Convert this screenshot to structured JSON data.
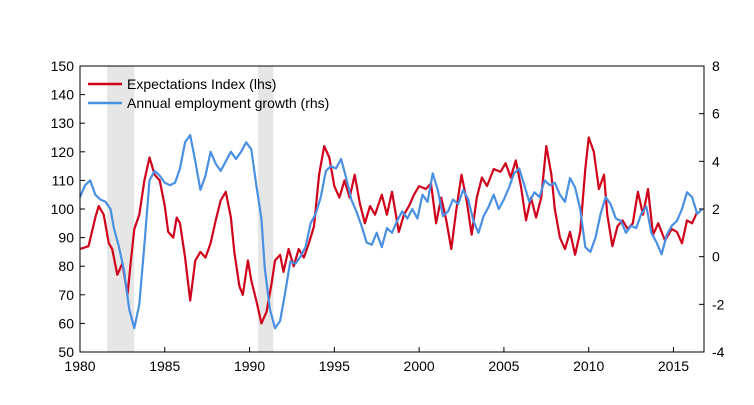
{
  "chart_data": {
    "type": "line",
    "title": "",
    "xlabel": "",
    "ylabel_left": "",
    "ylabel_right": "",
    "xlim": [
      1980,
      2016.8
    ],
    "ylim_left": [
      50,
      150
    ],
    "ylim_right": [
      -4,
      8
    ],
    "x_ticks": [
      1980,
      1985,
      1990,
      1995,
      2000,
      2005,
      2010,
      2015
    ],
    "x_tick_labels": [
      "1980",
      "1985",
      "1990",
      "1995",
      "2000",
      "2005",
      "2010",
      "2015"
    ],
    "left_ticks": [
      50,
      60,
      70,
      80,
      90,
      100,
      110,
      120,
      130,
      140,
      150
    ],
    "left_tick_labels": [
      "50",
      "60",
      "70",
      "80",
      "90",
      "100",
      "110",
      "120",
      "130",
      "140",
      "150"
    ],
    "right_ticks": [
      -4,
      -2,
      0,
      2,
      4,
      6,
      8
    ],
    "right_tick_labels": [
      "-4",
      "-2",
      "0",
      "2",
      "4",
      "6",
      "8"
    ],
    "grid": false,
    "legend_position": "top-left",
    "recession_bands": [
      [
        1981.6,
        1983.2
      ],
      [
        1990.5,
        1991.4
      ]
    ],
    "series": [
      {
        "name": "Expectations Index (lhs)",
        "axis": "left",
        "color": "#d0021b",
        "points": [
          [
            1980.0,
            86
          ],
          [
            1980.5,
            87
          ],
          [
            1980.9,
            97
          ],
          [
            1981.1,
            101
          ],
          [
            1981.4,
            98
          ],
          [
            1981.7,
            88
          ],
          [
            1981.9,
            86
          ],
          [
            1982.2,
            77
          ],
          [
            1982.5,
            81
          ],
          [
            1982.8,
            70
          ],
          [
            1983.0,
            82
          ],
          [
            1983.2,
            93
          ],
          [
            1983.5,
            98
          ],
          [
            1983.8,
            110
          ],
          [
            1984.1,
            118
          ],
          [
            1984.4,
            112
          ],
          [
            1984.7,
            110
          ],
          [
            1985.0,
            101
          ],
          [
            1985.2,
            92
          ],
          [
            1985.5,
            90
          ],
          [
            1985.7,
            97
          ],
          [
            1985.9,
            95
          ],
          [
            1986.2,
            83
          ],
          [
            1986.5,
            68
          ],
          [
            1986.8,
            82
          ],
          [
            1987.1,
            85
          ],
          [
            1987.4,
            83
          ],
          [
            1987.7,
            88
          ],
          [
            1988.0,
            96
          ],
          [
            1988.3,
            103
          ],
          [
            1988.6,
            106
          ],
          [
            1988.9,
            97
          ],
          [
            1989.1,
            85
          ],
          [
            1989.4,
            73
          ],
          [
            1989.6,
            70
          ],
          [
            1989.9,
            82
          ],
          [
            1990.1,
            75
          ],
          [
            1990.4,
            68
          ],
          [
            1990.7,
            60
          ],
          [
            1991.0,
            64
          ],
          [
            1991.3,
            74
          ],
          [
            1991.5,
            82
          ],
          [
            1991.8,
            84
          ],
          [
            1992.0,
            78
          ],
          [
            1992.3,
            86
          ],
          [
            1992.6,
            80
          ],
          [
            1992.9,
            86
          ],
          [
            1993.2,
            83
          ],
          [
            1993.5,
            88
          ],
          [
            1993.8,
            94
          ],
          [
            1994.1,
            112
          ],
          [
            1994.4,
            122
          ],
          [
            1994.7,
            118
          ],
          [
            1995.0,
            108
          ],
          [
            1995.3,
            104
          ],
          [
            1995.6,
            110
          ],
          [
            1995.9,
            104
          ],
          [
            1996.2,
            112
          ],
          [
            1996.5,
            102
          ],
          [
            1996.8,
            95
          ],
          [
            1997.1,
            101
          ],
          [
            1997.4,
            98
          ],
          [
            1997.8,
            105
          ],
          [
            1998.1,
            98
          ],
          [
            1998.4,
            106
          ],
          [
            1998.8,
            92
          ],
          [
            1999.1,
            98
          ],
          [
            1999.4,
            101
          ],
          [
            1999.7,
            105
          ],
          [
            2000.0,
            108
          ],
          [
            2000.4,
            107
          ],
          [
            2000.7,
            109
          ],
          [
            2001.0,
            95
          ],
          [
            2001.3,
            104
          ],
          [
            2001.6,
            96
          ],
          [
            2001.9,
            86
          ],
          [
            2002.2,
            100
          ],
          [
            2002.5,
            112
          ],
          [
            2002.8,
            103
          ],
          [
            2003.1,
            91
          ],
          [
            2003.4,
            104
          ],
          [
            2003.7,
            111
          ],
          [
            2004.0,
            108
          ],
          [
            2004.4,
            114
          ],
          [
            2004.8,
            113
          ],
          [
            2005.1,
            116
          ],
          [
            2005.4,
            111
          ],
          [
            2005.7,
            117
          ],
          [
            2006.0,
            108
          ],
          [
            2006.3,
            96
          ],
          [
            2006.6,
            104
          ],
          [
            2006.9,
            97
          ],
          [
            2007.2,
            104
          ],
          [
            2007.5,
            122
          ],
          [
            2007.8,
            112
          ],
          [
            2008.0,
            100
          ],
          [
            2008.3,
            90
          ],
          [
            2008.6,
            86
          ],
          [
            2008.9,
            92
          ],
          [
            2009.2,
            84
          ],
          [
            2009.5,
            92
          ],
          [
            2009.8,
            114
          ],
          [
            2010.0,
            125
          ],
          [
            2010.3,
            120
          ],
          [
            2010.6,
            107
          ],
          [
            2010.9,
            112
          ],
          [
            2011.1,
            98
          ],
          [
            2011.4,
            87
          ],
          [
            2011.7,
            94
          ],
          [
            2012.0,
            96
          ],
          [
            2012.3,
            93
          ],
          [
            2012.6,
            95
          ],
          [
            2012.9,
            106
          ],
          [
            2013.2,
            98
          ],
          [
            2013.5,
            107
          ],
          [
            2013.8,
            91
          ],
          [
            2014.1,
            95
          ],
          [
            2014.5,
            89
          ],
          [
            2014.9,
            93
          ],
          [
            2015.2,
            92
          ],
          [
            2015.5,
            88
          ],
          [
            2015.8,
            96
          ],
          [
            2016.1,
            95
          ],
          [
            2016.4,
            99
          ]
        ]
      },
      {
        "name": "Annual employment growth (rhs)",
        "axis": "right",
        "color": "#4a90e2",
        "points": [
          [
            1980.0,
            2.5
          ],
          [
            1980.3,
            3.0
          ],
          [
            1980.6,
            3.2
          ],
          [
            1980.9,
            2.6
          ],
          [
            1981.2,
            2.4
          ],
          [
            1981.5,
            2.3
          ],
          [
            1981.8,
            2.0
          ],
          [
            1982.0,
            1.2
          ],
          [
            1982.3,
            0.4
          ],
          [
            1982.6,
            -0.6
          ],
          [
            1982.9,
            -2.2
          ],
          [
            1983.2,
            -3.0
          ],
          [
            1983.5,
            -2.0
          ],
          [
            1983.8,
            0.5
          ],
          [
            1984.1,
            3.2
          ],
          [
            1984.4,
            3.6
          ],
          [
            1984.7,
            3.4
          ],
          [
            1985.0,
            3.1
          ],
          [
            1985.3,
            3.0
          ],
          [
            1985.6,
            3.1
          ],
          [
            1985.9,
            3.7
          ],
          [
            1986.2,
            4.8
          ],
          [
            1986.5,
            5.1
          ],
          [
            1986.8,
            4.0
          ],
          [
            1987.1,
            2.8
          ],
          [
            1987.4,
            3.4
          ],
          [
            1987.7,
            4.4
          ],
          [
            1988.0,
            3.9
          ],
          [
            1988.3,
            3.6
          ],
          [
            1988.6,
            4.0
          ],
          [
            1988.9,
            4.4
          ],
          [
            1989.2,
            4.1
          ],
          [
            1989.5,
            4.4
          ],
          [
            1989.8,
            4.8
          ],
          [
            1990.1,
            4.5
          ],
          [
            1990.4,
            3.0
          ],
          [
            1990.7,
            1.6
          ],
          [
            1990.9,
            -0.5
          ],
          [
            1991.2,
            -2.2
          ],
          [
            1991.5,
            -3.0
          ],
          [
            1991.8,
            -2.7
          ],
          [
            1992.1,
            -1.5
          ],
          [
            1992.4,
            -0.2
          ],
          [
            1992.7,
            -0.3
          ],
          [
            1993.0,
            0.0
          ],
          [
            1993.3,
            0.4
          ],
          [
            1993.6,
            1.4
          ],
          [
            1993.9,
            1.8
          ],
          [
            1994.2,
            2.5
          ],
          [
            1994.5,
            3.6
          ],
          [
            1994.8,
            3.8
          ],
          [
            1995.1,
            3.7
          ],
          [
            1995.4,
            4.1
          ],
          [
            1995.7,
            3.3
          ],
          [
            1996.0,
            2.4
          ],
          [
            1996.3,
            1.9
          ],
          [
            1996.6,
            1.3
          ],
          [
            1996.9,
            0.6
          ],
          [
            1997.2,
            0.5
          ],
          [
            1997.5,
            1.0
          ],
          [
            1997.8,
            0.4
          ],
          [
            1998.1,
            1.2
          ],
          [
            1998.4,
            1.0
          ],
          [
            1998.7,
            1.5
          ],
          [
            1999.0,
            1.9
          ],
          [
            1999.3,
            1.6
          ],
          [
            1999.6,
            2.0
          ],
          [
            1999.9,
            1.6
          ],
          [
            2000.2,
            2.6
          ],
          [
            2000.5,
            2.3
          ],
          [
            2000.8,
            3.5
          ],
          [
            2001.1,
            2.8
          ],
          [
            2001.4,
            1.7
          ],
          [
            2001.7,
            1.9
          ],
          [
            2002.0,
            2.4
          ],
          [
            2002.3,
            2.2
          ],
          [
            2002.6,
            2.8
          ],
          [
            2002.9,
            2.4
          ],
          [
            2003.2,
            1.5
          ],
          [
            2003.5,
            1.0
          ],
          [
            2003.8,
            1.7
          ],
          [
            2004.1,
            2.1
          ],
          [
            2004.4,
            2.6
          ],
          [
            2004.7,
            2.0
          ],
          [
            2005.0,
            2.4
          ],
          [
            2005.3,
            2.9
          ],
          [
            2005.6,
            3.5
          ],
          [
            2005.9,
            3.7
          ],
          [
            2006.2,
            3.0
          ],
          [
            2006.5,
            2.3
          ],
          [
            2006.8,
            2.7
          ],
          [
            2007.1,
            2.5
          ],
          [
            2007.4,
            3.2
          ],
          [
            2007.7,
            3.0
          ],
          [
            2008.0,
            3.1
          ],
          [
            2008.3,
            2.6
          ],
          [
            2008.6,
            2.3
          ],
          [
            2008.9,
            3.3
          ],
          [
            2009.2,
            2.9
          ],
          [
            2009.5,
            2.0
          ],
          [
            2009.8,
            0.4
          ],
          [
            2010.1,
            0.2
          ],
          [
            2010.4,
            0.8
          ],
          [
            2010.7,
            1.8
          ],
          [
            2011.0,
            2.5
          ],
          [
            2011.3,
            2.2
          ],
          [
            2011.6,
            1.6
          ],
          [
            2011.9,
            1.5
          ],
          [
            2012.2,
            1.0
          ],
          [
            2012.5,
            1.3
          ],
          [
            2012.8,
            1.2
          ],
          [
            2013.1,
            1.8
          ],
          [
            2013.4,
            2.1
          ],
          [
            2013.7,
            1.0
          ],
          [
            2014.0,
            0.6
          ],
          [
            2014.3,
            0.1
          ],
          [
            2014.6,
            0.9
          ],
          [
            2014.9,
            1.3
          ],
          [
            2015.2,
            1.5
          ],
          [
            2015.5,
            2.0
          ],
          [
            2015.8,
            2.7
          ],
          [
            2016.1,
            2.5
          ],
          [
            2016.4,
            1.8
          ],
          [
            2016.7,
            2.0
          ]
        ]
      }
    ]
  }
}
